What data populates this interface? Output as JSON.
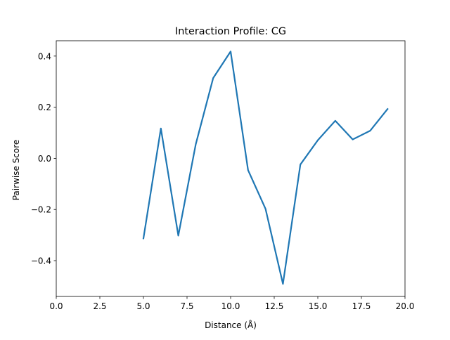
{
  "chart_data": {
    "type": "line",
    "title": "Interaction Profile: CG",
    "xlabel": "Distance (Å)",
    "ylabel": "Pairwise Score",
    "xlim": [
      0.0,
      20.0
    ],
    "ylim": [
      -0.54,
      0.46
    ],
    "x_ticks": [
      "0.0",
      "2.5",
      "5.0",
      "7.5",
      "10.0",
      "12.5",
      "15.0",
      "17.5",
      "20.0"
    ],
    "y_ticks": [
      "−0.4",
      "−0.2",
      "0.0",
      "0.2",
      "0.4"
    ],
    "grid": false,
    "series": [
      {
        "color": "#1f77b4",
        "x": [
          5,
          6,
          7,
          8,
          9,
          10,
          11,
          12,
          13,
          14,
          15,
          16,
          17,
          18,
          19
        ],
        "y": [
          -0.313,
          0.117,
          -0.302,
          0.055,
          0.314,
          0.418,
          -0.046,
          -0.197,
          -0.491,
          -0.024,
          0.071,
          0.147,
          0.074,
          0.108,
          0.193
        ]
      }
    ]
  }
}
